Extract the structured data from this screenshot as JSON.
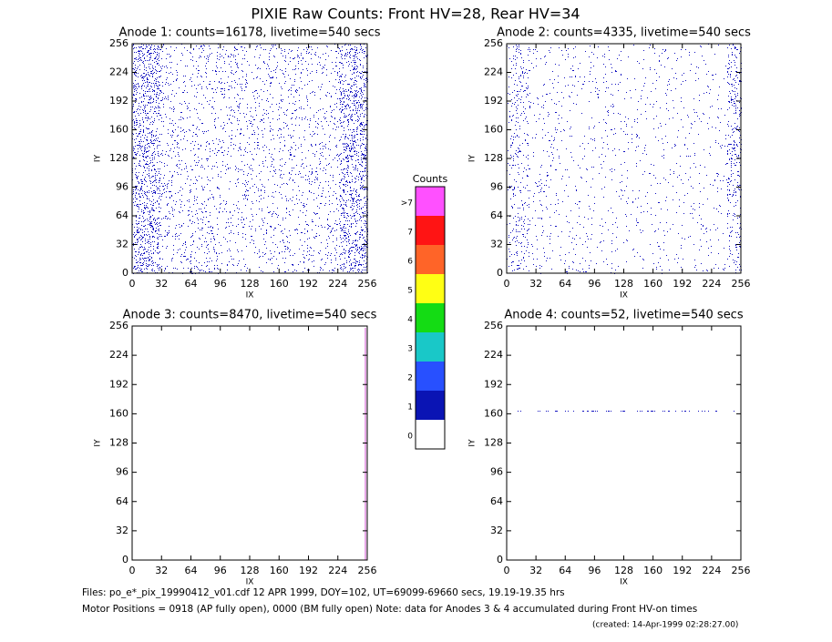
{
  "title": "PIXIE Raw Counts:  Front HV=28, Rear HV=34",
  "chart_data": [
    {
      "type": "image",
      "title": "Anode 1: counts=16178, livetime=540 secs",
      "xlabel": "IX",
      "ylabel": "IY",
      "xlim": [
        0,
        256
      ],
      "ylim": [
        0,
        256
      ],
      "xticks": [
        0,
        32,
        64,
        96,
        128,
        160,
        192,
        224,
        256
      ],
      "yticks": [
        0,
        32,
        64,
        96,
        128,
        160,
        192,
        224,
        256
      ]
    },
    {
      "type": "image",
      "title": "Anode 2: counts=4335, livetime=540 secs",
      "xlabel": "IX",
      "ylabel": "IY",
      "xlim": [
        0,
        256
      ],
      "ylim": [
        0,
        256
      ],
      "xticks": [
        0,
        32,
        64,
        96,
        128,
        160,
        192,
        224,
        256
      ],
      "yticks": [
        0,
        32,
        64,
        96,
        128,
        160,
        192,
        224,
        256
      ]
    },
    {
      "type": "image",
      "title": "Anode 3: counts=8470, livetime=540 secs",
      "xlabel": "IX",
      "ylabel": "IY",
      "xlim": [
        0,
        256
      ],
      "ylim": [
        0,
        256
      ],
      "xticks": [
        0,
        32,
        64,
        96,
        128,
        160,
        192,
        224,
        256
      ],
      "yticks": [
        0,
        32,
        64,
        96,
        128,
        160,
        192,
        224,
        256
      ]
    },
    {
      "type": "image",
      "title": "Anode 4: counts=52, livetime=540 secs",
      "xlabel": "IX",
      "ylabel": "IY",
      "xlim": [
        0,
        256
      ],
      "ylim": [
        0,
        256
      ],
      "xticks": [
        0,
        32,
        64,
        96,
        128,
        160,
        192,
        224,
        256
      ],
      "yticks": [
        0,
        32,
        64,
        96,
        128,
        160,
        192,
        224,
        256
      ]
    }
  ],
  "colorbar": {
    "title": "Counts",
    "labels": [
      "0",
      "1",
      "2",
      "3",
      "4",
      "5",
      "6",
      "7",
      ">7"
    ],
    "colors": [
      "#ffffff",
      "#0a14b4",
      "#2850ff",
      "#19c8c8",
      "#14dc14",
      "#ffff14",
      "#ff6428",
      "#ff1414",
      "#ff50ff"
    ]
  },
  "footer": [
    "Files: po_e*_pix_19990412_v01.cdf    12 APR 1999, DOY=102, UT=69099-69660 secs, 19.19-19.35 hrs",
    "Motor Positions = 0918 (AP fully open), 0000 (BM fully open)    Note: data for Anodes 3 & 4 accumulated during Front HV-on times"
  ],
  "created": "(created: 14-Apr-1999 02:28:27.00)"
}
